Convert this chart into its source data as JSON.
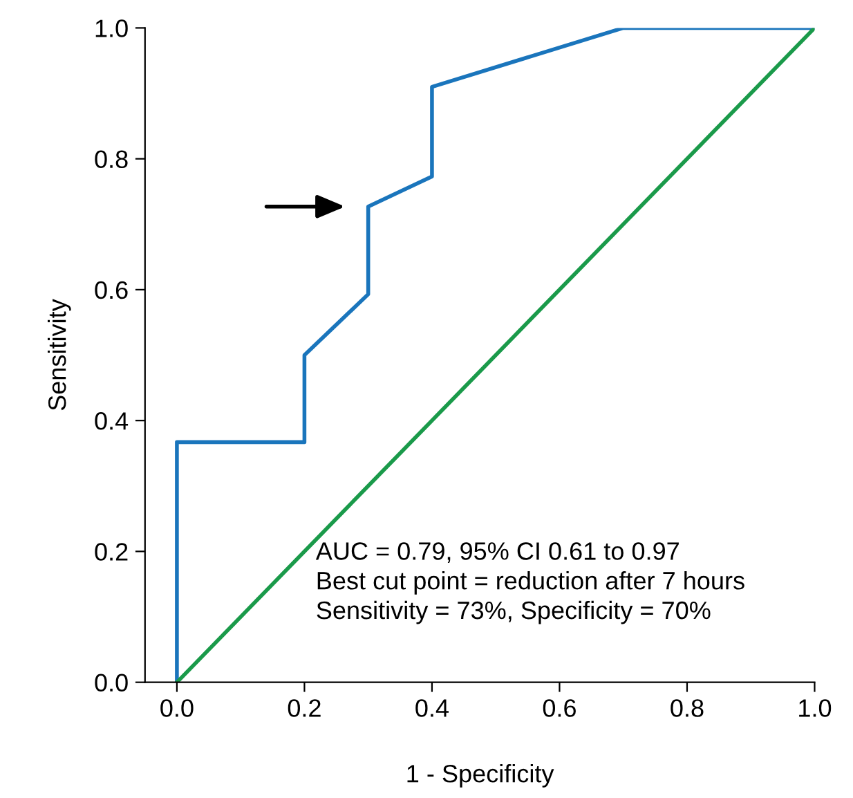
{
  "chart_data": {
    "type": "line",
    "xlabel": "1 - Specificity",
    "ylabel": "Sensitivity",
    "xlim": [
      -0.05,
      1.0
    ],
    "ylim": [
      0.0,
      1.0
    ],
    "xticks": [
      {
        "value": 0,
        "label": "0.0"
      },
      {
        "value": 0.2,
        "label": "0.2"
      },
      {
        "value": 0.4,
        "label": "0.4"
      },
      {
        "value": 0.6,
        "label": "0.6"
      },
      {
        "value": 0.8,
        "label": "0.8"
      },
      {
        "value": 1,
        "label": "1.0"
      }
    ],
    "yticks": [
      {
        "value": 0,
        "label": "0.0"
      },
      {
        "value": 0.2,
        "label": "0.2"
      },
      {
        "value": 0.4,
        "label": "0.4"
      },
      {
        "value": 0.6,
        "label": "0.6"
      },
      {
        "value": 0.8,
        "label": "0.8"
      },
      {
        "value": 1,
        "label": "1.0"
      }
    ],
    "grid": false,
    "legend": false,
    "marker": "none",
    "line_style": "solid",
    "series": [
      {
        "color": "#1a75bc",
        "x": [
          0,
          0,
          0.2,
          0.2,
          0.3,
          0.3,
          0.4,
          0.4,
          0.7,
          1.0
        ],
        "values": [
          0,
          0.367,
          0.367,
          0.5,
          0.593,
          0.727,
          0.773,
          0.91,
          1.0,
          1.0
        ]
      },
      {
        "color": "#1a9a4a",
        "x": [
          0,
          1
        ],
        "values": [
          0,
          1
        ]
      }
    ],
    "annotations": [
      "AUC = 0.79, 95% CI 0.61 to 0.97",
      "Best cut point = reduction after 7 hours",
      "Sensitivity = 73%, Specificity = 70%"
    ]
  }
}
